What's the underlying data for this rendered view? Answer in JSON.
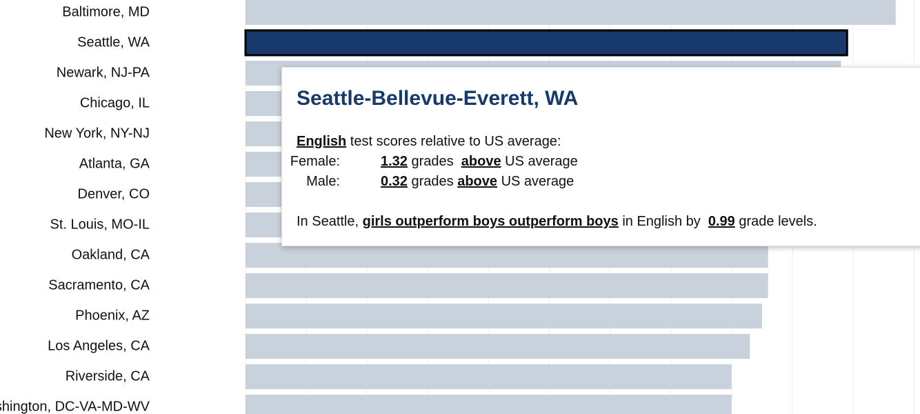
{
  "chart_data": {
    "type": "bar",
    "orientation": "horizontal",
    "categories": [
      "Baltimore, MD",
      "Seattle, WA",
      "Newark, NJ-PA",
      "Chicago, IL",
      "New York, NY-NJ",
      "Atlanta, GA",
      "Denver, CO",
      "St. Louis, MO-IL",
      "Oakland, CA",
      "Sacramento, CA",
      "Phoenix, AZ",
      "Los Angeles, CA",
      "Riverside, CA",
      "Washington, DC-VA-MD-WV"
    ],
    "values": [
      1.07,
      0.99,
      0.98,
      0.97,
      0.95,
      0.93,
      0.91,
      0.88,
      0.86,
      0.86,
      0.85,
      0.83,
      0.8,
      0.8
    ],
    "color": "#c9d1dc",
    "highlight_color": "#17396b",
    "highlight": 1,
    "xlim": [
      0,
      1.11
    ],
    "xticks": [
      0,
      0.1,
      0.2,
      0.3,
      0.4,
      0.5,
      0.6,
      0.7,
      0.8,
      0.9,
      1,
      1.1
    ],
    "grid": true
  },
  "tooltip": {
    "title": "Seattle-Bellevue-Everett, WA",
    "intro": {
      "subject": "English",
      "text": "test scores relative to US average:"
    },
    "rows": [
      {
        "label": "Female:",
        "value": 1.32,
        "unit": "grades",
        "direction": "above",
        "reference": "US average"
      },
      {
        "label": "Male:",
        "value": 0.32,
        "unit": "grades",
        "direction": "above",
        "reference": "US average"
      }
    ],
    "summary": {
      "prefix": "In Seattle,",
      "emphasis": "girls outperform boys outperform boys",
      "middle": "in English by",
      "value": 0.99,
      "suffix": "grade levels."
    }
  }
}
